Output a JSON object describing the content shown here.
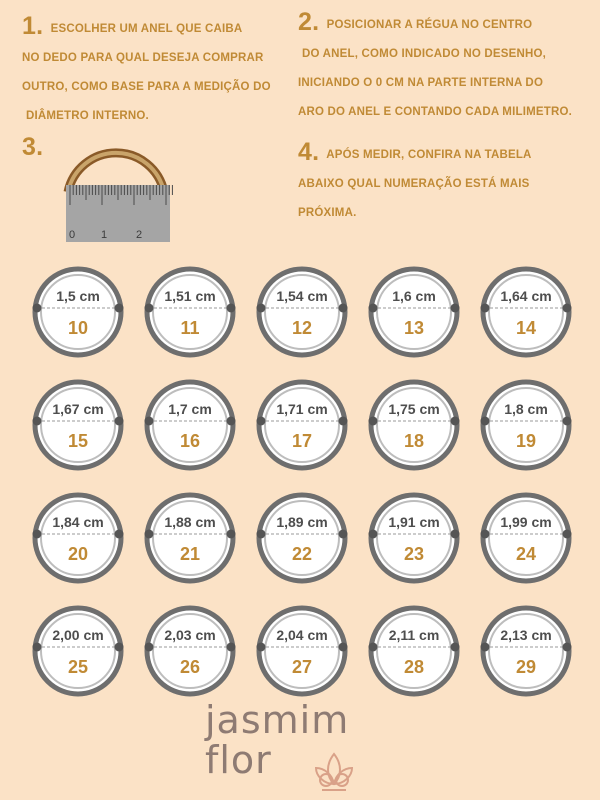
{
  "steps": {
    "s1": {
      "number": "1.",
      "lines": [
        "ESCOLHER UM ANEL QUE CAIBA",
        "NO DEDO PARA QUAL DESEJA COMPRAR",
        "OUTRO, COMO BASE PARA A MEDIÇÃO DO",
        "DIÂMETRO INTERNO."
      ]
    },
    "s2": {
      "number": "2.",
      "lines": [
        "POSICIONAR A RÉGUA NO CENTRO",
        "DO ANEL, COMO INDICADO NO DESENHO,",
        "INICIANDO O 0 CM NA PARTE INTERNA DO",
        "ARO DO ANEL E CONTANDO CADA MILIMETRO."
      ]
    },
    "s3": {
      "number": "3."
    },
    "s4": {
      "number": "4.",
      "lines": [
        "APÓS MEDIR, CONFIRA NA TABELA",
        "ABAIXO QUAL NUMERAÇÃO ESTÁ MAIS",
        "PRÓXIMA."
      ]
    }
  },
  "ruler": {
    "ticks": [
      "0",
      "1",
      "2"
    ]
  },
  "rings": [
    {
      "diameter": "1,5 cm",
      "size": "10"
    },
    {
      "diameter": "1,51 cm",
      "size": "11"
    },
    {
      "diameter": "1,54 cm",
      "size": "12"
    },
    {
      "diameter": "1,6 cm",
      "size": "13"
    },
    {
      "diameter": "1,64 cm",
      "size": "14"
    },
    {
      "diameter": "1,67 cm",
      "size": "15"
    },
    {
      "diameter": "1,7 cm",
      "size": "16"
    },
    {
      "diameter": "1,71 cm",
      "size": "17"
    },
    {
      "diameter": "1,75 cm",
      "size": "18"
    },
    {
      "diameter": "1,8 cm",
      "size": "19"
    },
    {
      "diameter": "1,84 cm",
      "size": "20"
    },
    {
      "diameter": "1,88 cm",
      "size": "21"
    },
    {
      "diameter": "1,89 cm",
      "size": "22"
    },
    {
      "diameter": "1,91 cm",
      "size": "23"
    },
    {
      "diameter": "1,99 cm",
      "size": "24"
    },
    {
      "diameter": "2,00 cm",
      "size": "25"
    },
    {
      "diameter": "2,03 cm",
      "size": "26"
    },
    {
      "diameter": "2,04 cm",
      "size": "27"
    },
    {
      "diameter": "2,11 cm",
      "size": "28"
    },
    {
      "diameter": "2,13 cm",
      "size": "29"
    }
  ],
  "brand": {
    "line1": "jasmim",
    "line2": "flor"
  },
  "colors": {
    "background": "#fbe2c6",
    "accent": "#c08a35",
    "ring_gray": "#6e6e6e",
    "brand": "#8e7b73"
  },
  "icons": {
    "logo": "lotus-flower-icon",
    "tool": "ruler-icon"
  }
}
